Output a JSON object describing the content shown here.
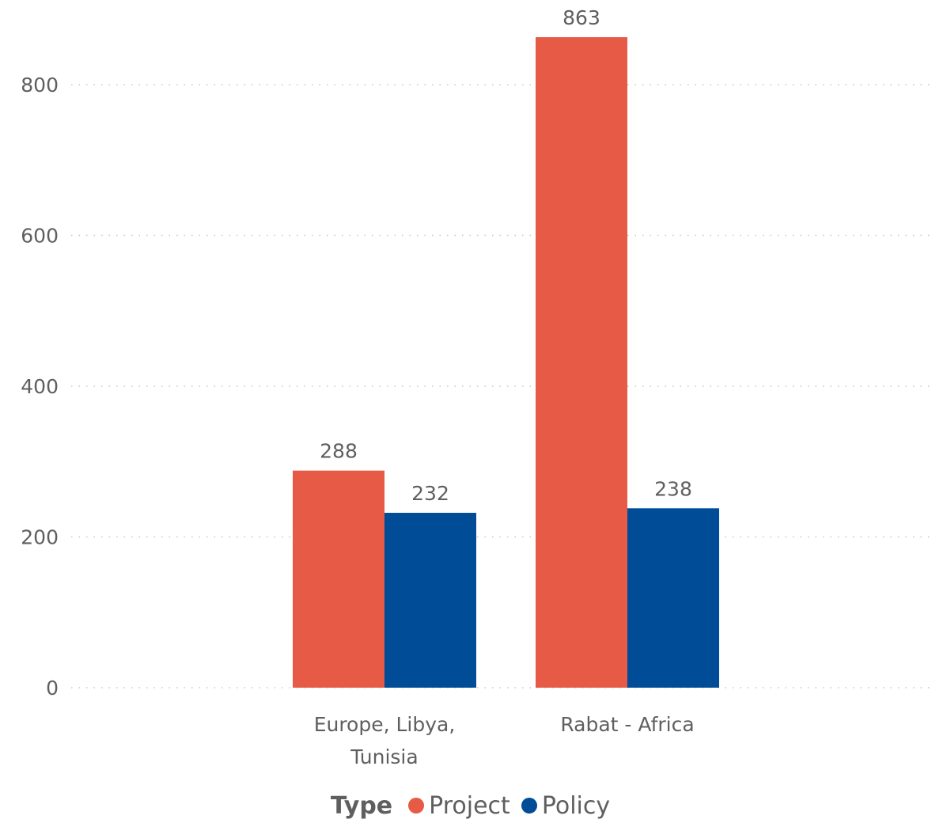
{
  "chart_data": {
    "type": "bar",
    "categories": [
      [
        "Europe, Libya,",
        "Tunisia"
      ],
      [
        "Rabat - Africa"
      ]
    ],
    "series": [
      {
        "name": "Project",
        "values": [
          288,
          863
        ],
        "color": "#E65A46"
      },
      {
        "name": "Policy",
        "values": [
          232,
          238
        ],
        "color": "#004C97"
      }
    ],
    "y_ticks": [
      0,
      200,
      400,
      600,
      800
    ],
    "ylim": [
      0,
      863
    ],
    "grid": true,
    "legend_title": "Type",
    "legend_position": "bottom"
  }
}
